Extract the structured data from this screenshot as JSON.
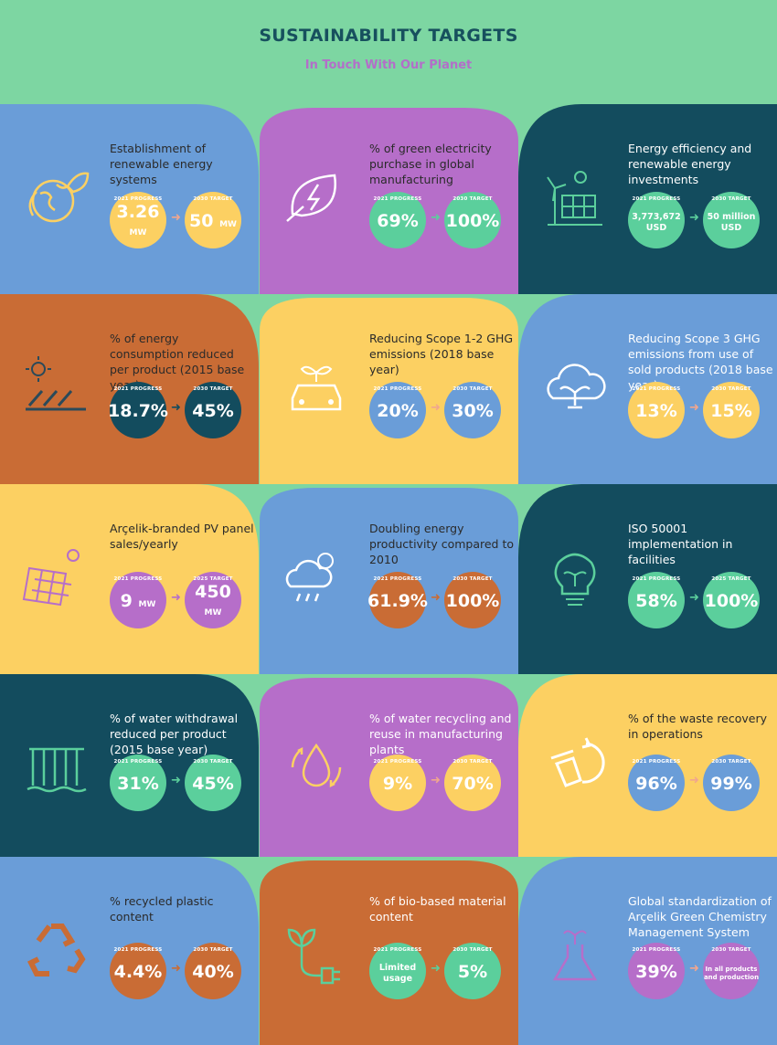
{
  "header": {
    "title": "SUSTAINABILITY TARGETS",
    "subtitle": "In Touch With Our Planet"
  },
  "colors": {
    "background": "#7dd6a2",
    "blue": "#6a9dd8",
    "purple": "#b66ec9",
    "teal": "#134c5e",
    "orange": "#c96c35",
    "yellow": "#fcd062",
    "green": "#5bcf9c",
    "arrow": "#f0a68e"
  },
  "cards": [
    {
      "id": "renewable-systems",
      "icon": "earth-leaf-icon",
      "title": "Establishment of renewable energy systems",
      "progress_label": "2021 PROGRESS",
      "progress_value": "3.26",
      "progress_unit": "MW",
      "target_label": "2030 TARGET",
      "target_value": "50",
      "target_unit": "MW"
    },
    {
      "id": "green-electricity",
      "icon": "leaf-bolt-icon",
      "title": "% of green electricity purchase in global manufacturing",
      "progress_label": "2021 PROGRESS",
      "progress_value": "69%",
      "progress_unit": "",
      "target_label": "2030 TARGET",
      "target_value": "100%",
      "target_unit": ""
    },
    {
      "id": "energy-investments",
      "icon": "wind-solar-icon",
      "title": "Energy efficiency and renewable energy investments",
      "progress_label": "2021 PROGRESS",
      "progress_value": "3,773,672 USD",
      "progress_unit": "",
      "target_label": "2030 TARGET",
      "target_value": "50 million USD",
      "target_unit": ""
    },
    {
      "id": "energy-consumption",
      "icon": "solar-panels-icon",
      "title": "% of energy consumption reduced per product (2015 base year)",
      "progress_label": "2021 PROGRESS",
      "progress_value": "18.7%",
      "progress_unit": "",
      "target_label": "2030 TARGET",
      "target_value": "45%",
      "target_unit": ""
    },
    {
      "id": "scope-1-2",
      "icon": "eco-car-icon",
      "title": "Reducing Scope 1-2 GHG emissions (2018 base year)",
      "progress_label": "2021 PROGRESS",
      "progress_value": "20%",
      "progress_unit": "",
      "target_label": "2030 TARGET",
      "target_value": "30%",
      "target_unit": ""
    },
    {
      "id": "scope-3",
      "icon": "cloud-plant-icon",
      "title": "Reducing Scope 3 GHG emissions from use of sold products (2018 base year)",
      "progress_label": "2021 PROGRESS",
      "progress_value": "13%",
      "progress_unit": "",
      "target_label": "2030 TARGET",
      "target_value": "15%",
      "target_unit": ""
    },
    {
      "id": "pv-panel",
      "icon": "pv-panel-icon",
      "title": "Arçelik-branded PV panel sales/yearly",
      "progress_label": "2021 PROGRESS",
      "progress_value": "9",
      "progress_unit": "MW",
      "target_label": "2025 TARGET",
      "target_value": "450",
      "target_unit": "MW"
    },
    {
      "id": "energy-productivity",
      "icon": "weather-icon",
      "title": "Doubling energy productivity compared to 2010",
      "progress_label": "2021 PROGRESS",
      "progress_value": "61.9%",
      "progress_unit": "",
      "target_label": "2030 TARGET",
      "target_value": "100%",
      "target_unit": ""
    },
    {
      "id": "iso-50001",
      "icon": "bulb-plant-icon",
      "title": "ISO 50001 implementation in facilities",
      "progress_label": "2021 PROGRESS",
      "progress_value": "58%",
      "progress_unit": "",
      "target_label": "2025 TARGET",
      "target_value": "100%",
      "target_unit": ""
    },
    {
      "id": "water-withdrawal",
      "icon": "waterfall-icon",
      "title": "% of water withdrawal reduced per product (2015 base year)",
      "progress_label": "2021 PROGRESS",
      "progress_value": "31%",
      "progress_unit": "",
      "target_label": "2030 TARGET",
      "target_value": "45%",
      "target_unit": ""
    },
    {
      "id": "water-recycling",
      "icon": "water-drop-recycle-icon",
      "title": "% of water recycling and reuse in manufacturing plants",
      "progress_label": "2021 PROGRESS",
      "progress_value": "9%",
      "progress_unit": "",
      "target_label": "2030 TARGET",
      "target_value": "70%",
      "target_unit": ""
    },
    {
      "id": "waste-recovery",
      "icon": "bin-recycle-icon",
      "title": "% of the waste recovery in operations",
      "progress_label": "2021 PROGRESS",
      "progress_value": "96%",
      "progress_unit": "",
      "target_label": "2030 TARGET",
      "target_value": "99%",
      "target_unit": ""
    },
    {
      "id": "recycled-plastic",
      "icon": "recycle-icon",
      "title": "% recycled plastic content",
      "progress_label": "2021 PROGRESS",
      "progress_value": "4.4%",
      "progress_unit": "",
      "target_label": "2030 TARGET",
      "target_value": "40%",
      "target_unit": ""
    },
    {
      "id": "bio-based",
      "icon": "plant-plug-icon",
      "title": "% of bio-based material content",
      "progress_label": "2021 PROGRESS",
      "progress_value": "Limited usage",
      "progress_unit": "",
      "target_label": "2030 TARGET",
      "target_value": "5%",
      "target_unit": ""
    },
    {
      "id": "green-chemistry",
      "icon": "flask-plant-icon",
      "title": "Global standardization of Arçelik Green Chemistry Management System",
      "progress_label": "2021 PROGRESS",
      "progress_value": "39%",
      "progress_unit": "",
      "target_label": "2030 TARGET",
      "target_value": "In all products and production",
      "target_unit": ""
    }
  ]
}
